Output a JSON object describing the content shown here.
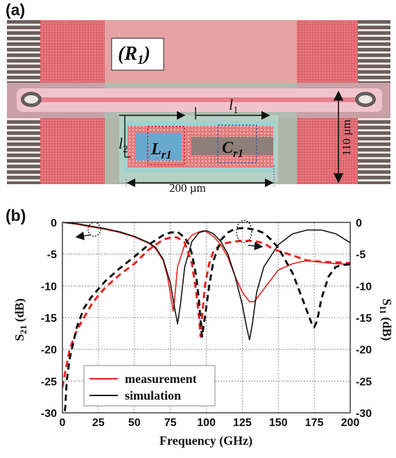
{
  "panel_a": {
    "label": "(a)",
    "resonator_label": "(R1)",
    "resonator_label_main": "(R",
    "resonator_label_sub": "1",
    "resonator_label_close": ")",
    "inductor_label_main": "L",
    "inductor_label_sub": "r1",
    "capacitor_label_main": "C",
    "capacitor_label_sub": "r1",
    "l1_label": "l",
    "l1_sub": "1",
    "l2_label": "l",
    "l2_sub": "2",
    "width_dim": "200 µm",
    "height_dim": "110 µm"
  },
  "panel_b": {
    "label": "(b)"
  },
  "chart_data": {
    "type": "line",
    "xlabel": "Frequency (GHz)",
    "ylabel_left": "S21 (dB)",
    "ylabel_left_main": "S",
    "ylabel_left_sub": "21",
    "ylabel_left_unit": " (dB)",
    "ylabel_right": "S11 (dB)",
    "ylabel_right_main": "S",
    "ylabel_right_sub": "11",
    "ylabel_right_unit": " (dB)",
    "xlim": [
      0,
      200
    ],
    "ylim_left": [
      -30,
      0
    ],
    "ylim_right": [
      -30,
      0
    ],
    "xticks": [
      "0",
      "25",
      "50",
      "75",
      "100",
      "125",
      "150",
      "175",
      "200"
    ],
    "yticks_left": [
      "0",
      "-5",
      "-10",
      "-15",
      "-20",
      "-25",
      "-30"
    ],
    "yticks_right": [
      "0",
      "-5",
      "-10",
      "-15",
      "-20",
      "-25",
      "-30"
    ],
    "grid": true,
    "legend": [
      "measurement",
      "simulation"
    ],
    "legend_position": "bottom-left",
    "colors": {
      "measurement": "#e8201e",
      "simulation": "#111111"
    },
    "series": [
      {
        "name": "measurement",
        "quantity": "S21",
        "style": "solid",
        "color": "#e8201e",
        "x": [
          0,
          10,
          20,
          30,
          40,
          50,
          60,
          65,
          70,
          73,
          76,
          77,
          78,
          80,
          85,
          90,
          95,
          98,
          100,
          105,
          110,
          115,
          120,
          125,
          130,
          133,
          135,
          140,
          150,
          160,
          170,
          180,
          190,
          200
        ],
        "y": [
          0,
          -0.3,
          -0.7,
          -1.1,
          -1.6,
          -2.3,
          -3.3,
          -4.2,
          -6.0,
          -8.5,
          -12.5,
          -14.0,
          -12.0,
          -7.0,
          -3.5,
          -2.0,
          -1.5,
          -1.3,
          -1.5,
          -2.2,
          -3.5,
          -5.5,
          -8.5,
          -11.0,
          -12.5,
          -12.5,
          -12.0,
          -10.5,
          -7.5,
          -6.5,
          -6.0,
          -6.3,
          -6.5,
          -6.6
        ]
      },
      {
        "name": "simulation",
        "quantity": "S21",
        "style": "solid",
        "color": "#111111",
        "x": [
          0,
          10,
          20,
          30,
          40,
          50,
          60,
          65,
          70,
          75,
          78,
          80,
          82,
          85,
          90,
          95,
          100,
          105,
          110,
          115,
          120,
          125,
          128,
          130,
          132,
          135,
          140,
          150,
          160,
          170,
          180,
          190,
          200
        ],
        "y": [
          0,
          -0.2,
          -0.6,
          -1.0,
          -1.5,
          -2.2,
          -3.2,
          -4.0,
          -5.8,
          -9.5,
          -13.5,
          -16.0,
          -13.0,
          -7.0,
          -3.0,
          -1.6,
          -1.3,
          -1.8,
          -3.0,
          -5.0,
          -8.5,
          -13.0,
          -16.5,
          -18.5,
          -16.0,
          -11.0,
          -7.0,
          -3.5,
          -1.8,
          -1.2,
          -1.2,
          -1.8,
          -3.2
        ]
      },
      {
        "name": "measurement",
        "quantity": "S11",
        "style": "dashed",
        "color": "#e8201e",
        "x": [
          0,
          2,
          5,
          10,
          15,
          20,
          25,
          30,
          40,
          50,
          60,
          65,
          70,
          75,
          78,
          80,
          85,
          90,
          93,
          95,
          96,
          97,
          99,
          102,
          105,
          110,
          115,
          120,
          125,
          130,
          135,
          140,
          145,
          150,
          160,
          170,
          180,
          190,
          200
        ],
        "y": [
          -26,
          -23.5,
          -20,
          -17,
          -15,
          -13,
          -11.5,
          -10.2,
          -8.2,
          -6.5,
          -4.3,
          -3.5,
          -2.7,
          -2.4,
          -2.3,
          -2.4,
          -3.2,
          -6.5,
          -11,
          -15,
          -18,
          -15,
          -10,
          -6.5,
          -4.5,
          -3.5,
          -3.2,
          -3.0,
          -2.9,
          -2.9,
          -3.0,
          -3.3,
          -4.0,
          -4.5,
          -5.2,
          -6.0,
          -6.2,
          -6.3,
          -6.4
        ]
      },
      {
        "name": "simulation",
        "quantity": "S11",
        "style": "dashed",
        "color": "#111111",
        "x": [
          0,
          2,
          3,
          5,
          10,
          15,
          20,
          30,
          40,
          50,
          60,
          70,
          75,
          80,
          85,
          88,
          90,
          93,
          95,
          96,
          97,
          99,
          102,
          105,
          110,
          115,
          120,
          125,
          130,
          135,
          140,
          145,
          150,
          160,
          165,
          170,
          173,
          175,
          177,
          180,
          185,
          190,
          195,
          200
        ],
        "y": [
          -33,
          -29,
          -25,
          -21.5,
          -16.5,
          -13.5,
          -11.8,
          -9.2,
          -7.2,
          -5.4,
          -3.5,
          -2.0,
          -1.6,
          -1.5,
          -2.4,
          -3.5,
          -5.0,
          -8.5,
          -12.5,
          -15.5,
          -18.0,
          -15.0,
          -10.0,
          -6.0,
          -2.8,
          -1.6,
          -1.0,
          -0.9,
          -1.0,
          -1.2,
          -1.7,
          -2.7,
          -4.0,
          -8.0,
          -11.0,
          -14.0,
          -15.8,
          -16.5,
          -15.5,
          -12.0,
          -8.5,
          -7.0,
          -6.7,
          -6.6
        ]
      }
    ]
  }
}
